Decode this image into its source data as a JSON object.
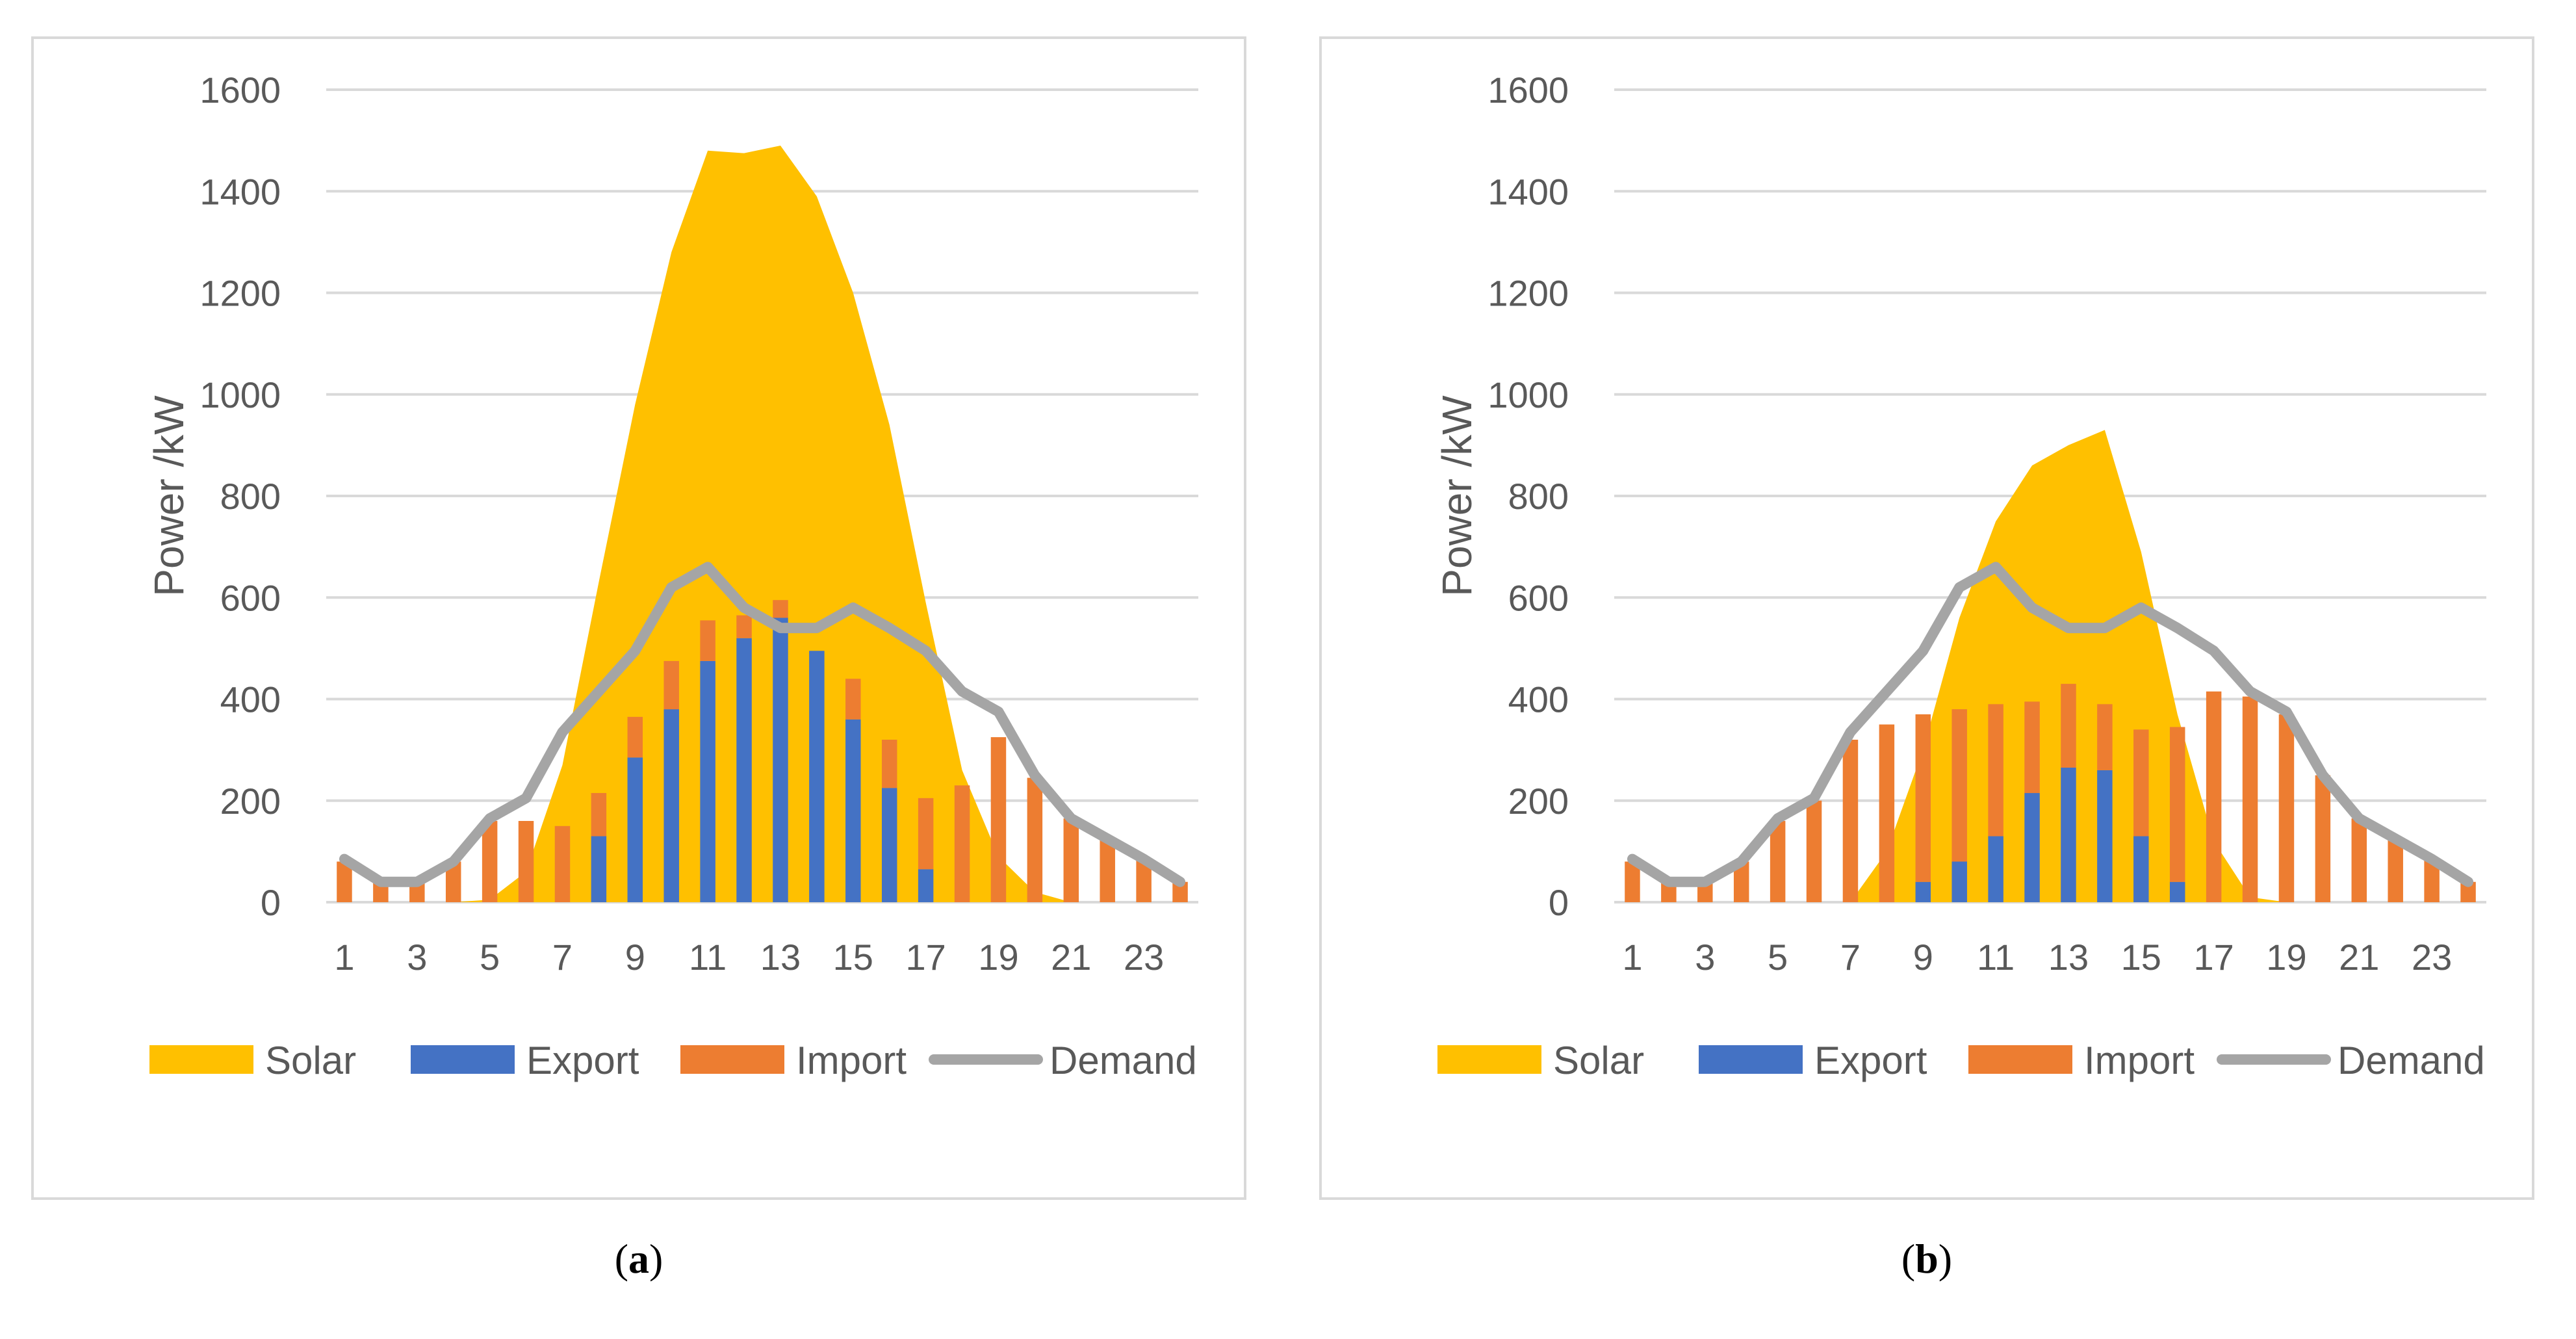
{
  "colors": {
    "solar": "#FFC000",
    "export": "#4472C4",
    "import": "#ED7D31",
    "demand": "#A5A5A5",
    "grid": "#D9D9D9",
    "text": "#595959"
  },
  "chart_data": [
    {
      "type": "bar",
      "caption": "a",
      "ylabel": "Power /kW",
      "ylim": [
        0,
        1600
      ],
      "yticks": [
        "0",
        "200",
        "400",
        "600",
        "800",
        "1000",
        "1200",
        "1400",
        "1600"
      ],
      "xticks": [
        "1",
        "3",
        "5",
        "7",
        "9",
        "11",
        "13",
        "15",
        "17",
        "19",
        "21",
        "23"
      ],
      "categories": [
        1,
        2,
        3,
        4,
        5,
        6,
        7,
        8,
        9,
        10,
        11,
        12,
        13,
        14,
        15,
        16,
        17,
        18,
        19,
        20,
        21,
        22,
        23,
        24
      ],
      "legend": [
        "Solar",
        "Export",
        "Import",
        "Demand"
      ],
      "legend_position": "bottom",
      "series": [
        {
          "name": "Solar",
          "kind": "area",
          "values": [
            0,
            0,
            0,
            0,
            5,
            60,
            270,
            630,
            980,
            1280,
            1480,
            1475,
            1490,
            1390,
            1200,
            940,
            590,
            260,
            90,
            20,
            0,
            0,
            0,
            0
          ]
        },
        {
          "name": "Export",
          "kind": "stacked-bar",
          "values": [
            0,
            0,
            0,
            0,
            0,
            0,
            0,
            130,
            285,
            380,
            475,
            520,
            560,
            495,
            360,
            225,
            65,
            0,
            0,
            0,
            0,
            0,
            0,
            0
          ]
        },
        {
          "name": "Import",
          "kind": "stacked-bar",
          "values": [
            80,
            40,
            40,
            80,
            160,
            160,
            150,
            85,
            80,
            95,
            80,
            45,
            35,
            0,
            80,
            95,
            140,
            230,
            325,
            245,
            165,
            125,
            85,
            40
          ]
        },
        {
          "name": "Demand",
          "kind": "line",
          "values": [
            85,
            40,
            40,
            80,
            165,
            205,
            335,
            415,
            495,
            620,
            660,
            580,
            540,
            540,
            580,
            540,
            495,
            415,
            375,
            250,
            165,
            125,
            85,
            40
          ]
        }
      ]
    },
    {
      "type": "bar",
      "caption": "b",
      "ylabel": "Power /kW",
      "ylim": [
        0,
        1600
      ],
      "yticks": [
        "0",
        "200",
        "400",
        "600",
        "800",
        "1000",
        "1200",
        "1400",
        "1600"
      ],
      "xticks": [
        "1",
        "3",
        "5",
        "7",
        "9",
        "11",
        "13",
        "15",
        "17",
        "19",
        "21",
        "23"
      ],
      "categories": [
        1,
        2,
        3,
        4,
        5,
        6,
        7,
        8,
        9,
        10,
        11,
        12,
        13,
        14,
        15,
        16,
        17,
        18,
        19,
        20,
        21,
        22,
        23,
        24
      ],
      "legend": [
        "Solar",
        "Export",
        "Import",
        "Demand"
      ],
      "legend_position": "bottom",
      "series": [
        {
          "name": "Solar",
          "kind": "area",
          "values": [
            0,
            0,
            0,
            0,
            0,
            0,
            0,
            100,
            300,
            560,
            750,
            860,
            900,
            930,
            690,
            370,
            120,
            10,
            0,
            0,
            0,
            0,
            0,
            0
          ]
        },
        {
          "name": "Export",
          "kind": "stacked-bar",
          "values": [
            0,
            0,
            0,
            0,
            0,
            0,
            0,
            0,
            40,
            80,
            130,
            215,
            265,
            260,
            130,
            40,
            0,
            0,
            0,
            0,
            0,
            0,
            0,
            0
          ]
        },
        {
          "name": "Import",
          "kind": "stacked-bar",
          "values": [
            80,
            40,
            40,
            80,
            160,
            200,
            320,
            350,
            330,
            300,
            260,
            180,
            165,
            130,
            210,
            305,
            415,
            405,
            370,
            250,
            165,
            125,
            85,
            40
          ]
        },
        {
          "name": "Demand",
          "kind": "line",
          "values": [
            85,
            40,
            40,
            80,
            165,
            205,
            335,
            415,
            495,
            620,
            660,
            580,
            540,
            540,
            580,
            540,
            495,
            415,
            375,
            250,
            165,
            125,
            85,
            40
          ]
        }
      ]
    }
  ]
}
